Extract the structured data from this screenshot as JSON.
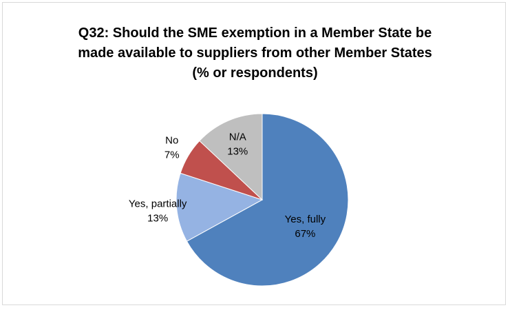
{
  "chart_data": {
    "type": "pie",
    "title_lines": [
      "Q32: Should the SME exemption in a Member State be",
      "made available to suppliers from other Member States",
      "(% or respondents)"
    ],
    "slices": [
      {
        "name": "Yes, fully",
        "value": 67,
        "value_label": "67%",
        "color": "#4f81bd"
      },
      {
        "name": "Yes, partially",
        "value": 13,
        "value_label": "13%",
        "color": "#95b3e3"
      },
      {
        "name": "No",
        "value": 7,
        "value_label": "7%",
        "color": "#c0504d"
      },
      {
        "name": "N/A",
        "value": 13,
        "value_label": "13%",
        "color": "#bfbfbf"
      }
    ],
    "start_angle": "12 o'clock",
    "direction": "clockwise",
    "labels": "category and percentage",
    "legend": "none"
  }
}
